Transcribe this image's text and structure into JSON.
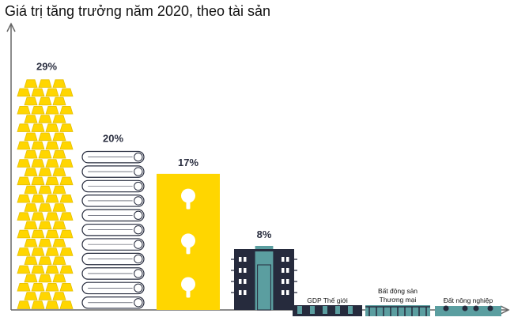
{
  "chart_data": {
    "type": "bar",
    "title": "Giá trị tăng trưởng năm 2020, theo tài sản",
    "xlabel": "",
    "ylabel": "",
    "ylim": [
      0,
      32
    ],
    "grid": false,
    "legend": "none",
    "categories": [
      "",
      "",
      "",
      "",
      "GDP Thế giới",
      "Bất động sản Thương mại",
      "Đất nông nghiệp"
    ],
    "category_lines": [
      [],
      [],
      [],
      [],
      [
        "GDP Thế giới"
      ],
      [
        "Bất động sản",
        "Thương mại"
      ],
      [
        "Đất nông nghiệp"
      ]
    ],
    "values": [
      29,
      20,
      17,
      8,
      null,
      null,
      null
    ],
    "value_labels": [
      "29%",
      "20%",
      "17%",
      "8%",
      "",
      "",
      ""
    ],
    "icons": [
      "gold-bars",
      "coiled-pipes",
      "keyhole-block",
      "office-building",
      "factory-skyline",
      "commercial-building",
      "farmland"
    ],
    "colors": {
      "gold": "#FFD600",
      "gold_dark": "#E6BF00",
      "navy": "#262B3D",
      "teal": "#5B9EA0",
      "axis": "#666666",
      "text": "#2b2f40"
    }
  }
}
